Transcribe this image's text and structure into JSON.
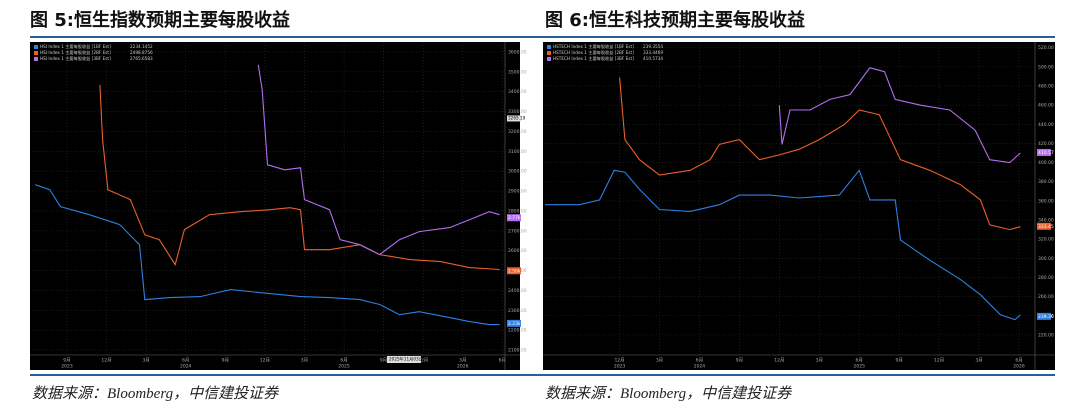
{
  "chart_data": [
    {
      "type": "line",
      "title": "图 5:恒生指数预期主要每股收益",
      "source": "数据来源：Bloomberg，中信建投证券",
      "xlim": [
        -2.65,
        33.2
      ],
      "ylim": [
        2075,
        3650
      ],
      "xticks": [
        {
          "value": 0,
          "label": "9月"
        },
        {
          "value": 3,
          "label": "12月"
        },
        {
          "value": 6,
          "label": "3月"
        },
        {
          "value": 9,
          "label": "6月"
        },
        {
          "value": 12,
          "label": "9月"
        },
        {
          "value": 15,
          "label": "12月"
        },
        {
          "value": 18,
          "label": "3月"
        },
        {
          "value": 21,
          "label": "6月"
        },
        {
          "value": 24,
          "label": "9月"
        },
        {
          "value": 27,
          "label": "12月"
        },
        {
          "value": 30,
          "label": "3月"
        },
        {
          "value": 33,
          "label": "6月"
        }
      ],
      "years": [
        {
          "value": 0,
          "label": "2023"
        },
        {
          "value": 9,
          "label": "2024"
        },
        {
          "value": 21,
          "label": "2025"
        },
        {
          "value": 30,
          "label": "2026"
        }
      ],
      "yticks": [
        {
          "value": 2100,
          "label": "2100.00"
        },
        {
          "value": 2200,
          "label": "2200.00"
        },
        {
          "value": 2300,
          "label": "2300.00"
        },
        {
          "value": 2400,
          "label": "2400.00"
        },
        {
          "value": 2500,
          "label": "2500.00"
        },
        {
          "value": 2600,
          "label": "2600.00"
        },
        {
          "value": 2700,
          "label": "2700.00"
        },
        {
          "value": 2800,
          "label": "2800.00"
        },
        {
          "value": 2900,
          "label": "2900.00"
        },
        {
          "value": 3000,
          "label": "3000.00"
        },
        {
          "value": 3100,
          "label": "3100.00"
        },
        {
          "value": 3200,
          "label": "3200.00"
        },
        {
          "value": 3300,
          "label": "3300.00"
        },
        {
          "value": 3400,
          "label": "3400.00"
        },
        {
          "value": 3500,
          "label": "3500.00"
        },
        {
          "value": 3600,
          "label": "3600.00"
        }
      ],
      "y_marker": {
        "value": 3265.19,
        "label": "3265.19"
      },
      "date_tag": "2025年11月03日",
      "series": [
        {
          "name": "HSI Index 1 主要每股收益 [1BF Est]",
          "color": "#2f80e0",
          "current": 2234.1452,
          "current_label": "2.23k",
          "x": [
            -2.4,
            -1.3,
            -0.5,
            1.7,
            4.0,
            5.5,
            5.9,
            7.8,
            10.1,
            12.4,
            14.6,
            17.7,
            19.9,
            22.2,
            23.7,
            25.2,
            26.7,
            29.0,
            30.5,
            32.0,
            32.8
          ],
          "values": [
            2932,
            2907,
            2821,
            2781,
            2731,
            2630,
            2354,
            2364,
            2369,
            2404,
            2389,
            2369,
            2364,
            2354,
            2329,
            2278,
            2293,
            2263,
            2243,
            2228,
            2228
          ]
        },
        {
          "name": "HSI Index 1 主要每股收益 [2BF Est]",
          "color": "#e8602a",
          "current": 2498.8756,
          "current_label": "2.50k",
          "x": [
            2.5,
            2.7,
            3.1,
            4.8,
            5.9,
            7.0,
            8.2,
            8.9,
            10.8,
            13.1,
            15.4,
            16.9,
            17.7,
            18.0,
            19.9,
            22.2,
            23.7,
            26.0,
            28.3,
            30.5,
            32.8
          ],
          "values": [
            3434,
            3158,
            2907,
            2857,
            2680,
            2655,
            2530,
            2706,
            2781,
            2796,
            2806,
            2816,
            2806,
            2605,
            2605,
            2630,
            2580,
            2555,
            2545,
            2515,
            2505
          ]
        },
        {
          "name": "HSI Index 1 主要每股收益 [3BF Est]",
          "color": "#b46ef0",
          "current": 2765.6583,
          "current_label": "2.77k",
          "x": [
            14.5,
            14.8,
            15.2,
            16.5,
            17.7,
            18.0,
            19.9,
            20.7,
            22.2,
            23.7,
            25.2,
            26.7,
            29.0,
            30.5,
            32.0,
            32.8
          ],
          "values": [
            3535,
            3409,
            3032,
            3007,
            3017,
            2857,
            2806,
            2655,
            2630,
            2580,
            2655,
            2696,
            2716,
            2756,
            2796,
            2781
          ]
        }
      ]
    },
    {
      "type": "line",
      "title": "图 6:恒生科技预期主要每股收益",
      "source": "数据来源：Bloomberg，中信建投证券",
      "xlim": [
        -5.6,
        31.2
      ],
      "ylim": [
        199,
        526
      ],
      "xticks": [
        {
          "value": 0,
          "label": "12月"
        },
        {
          "value": 3,
          "label": "3月"
        },
        {
          "value": 6,
          "label": "6月"
        },
        {
          "value": 9,
          "label": "9月"
        },
        {
          "value": 12,
          "label": "12月"
        },
        {
          "value": 15,
          "label": "3月"
        },
        {
          "value": 18,
          "label": "6月"
        },
        {
          "value": 21,
          "label": "9月"
        },
        {
          "value": 24,
          "label": "12月"
        },
        {
          "value": 27,
          "label": "3月"
        },
        {
          "value": 30,
          "label": "6月"
        }
      ],
      "years": [
        {
          "value": 0,
          "label": "2023"
        },
        {
          "value": 6,
          "label": "2024"
        },
        {
          "value": 18,
          "label": "2025"
        },
        {
          "value": 30,
          "label": "2026"
        }
      ],
      "yticks": [
        {
          "value": 220,
          "label": "220.00"
        },
        {
          "value": 240,
          "label": "240.00"
        },
        {
          "value": 260,
          "label": "260.00"
        },
        {
          "value": 280,
          "label": "280.00"
        },
        {
          "value": 300,
          "label": "300.00"
        },
        {
          "value": 320,
          "label": "320.00"
        },
        {
          "value": 340,
          "label": "340.00"
        },
        {
          "value": 360,
          "label": "360.00"
        },
        {
          "value": 380,
          "label": "380.00"
        },
        {
          "value": 400,
          "label": "400.00"
        },
        {
          "value": 420,
          "label": "420.00"
        },
        {
          "value": 440,
          "label": "440.00"
        },
        {
          "value": 460,
          "label": "460.00"
        },
        {
          "value": 480,
          "label": "480.00"
        },
        {
          "value": 500,
          "label": "500.00"
        },
        {
          "value": 520,
          "label": "520.00"
        }
      ],
      "series": [
        {
          "name": "HSTECH Index 1 主要每股收益 [1BF Est]",
          "color": "#2f80e0",
          "current": 239.3554,
          "current_label": "239.36",
          "x": [
            -5.6,
            -3.0,
            -1.5,
            -0.4,
            0.4,
            1.5,
            3.0,
            5.3,
            7.5,
            9.0,
            11.3,
            13.5,
            16.5,
            18.0,
            18.8,
            20.7,
            21.1,
            23.3,
            25.6,
            27.1,
            28.6,
            29.7,
            30.1
          ],
          "values": [
            356,
            356,
            361,
            392,
            390,
            372,
            351,
            349,
            356,
            366,
            366,
            363,
            366,
            392,
            361,
            361,
            319,
            298,
            278,
            262,
            241,
            236,
            241
          ]
        },
        {
          "name": "HSTECH Index 1 主要每股收益 [2BF Est]",
          "color": "#e8602a",
          "current": 333.4469,
          "current_label": "333.45",
          "x": [
            0,
            0.4,
            1.5,
            3.0,
            5.3,
            6.8,
            7.5,
            9.0,
            10.5,
            12.0,
            13.5,
            15.0,
            16.9,
            18.0,
            19.5,
            21.1,
            23.3,
            25.6,
            27.1,
            27.8,
            29.3,
            30.1
          ],
          "values": [
            489,
            424,
            403,
            387,
            392,
            403,
            419,
            424,
            403,
            408,
            414,
            424,
            440,
            455,
            450,
            403,
            392,
            377,
            361,
            335,
            330,
            333
          ]
        },
        {
          "name": "HSTECH Index 1 主要每股收益 [3BF Est]",
          "color": "#b46ef0",
          "current": 410.5734,
          "current_label": "410.57",
          "x": [
            12.0,
            12.2,
            12.8,
            14.3,
            15.8,
            17.3,
            18.8,
            19.9,
            20.7,
            22.6,
            24.8,
            26.7,
            27.8,
            29.3,
            30.1
          ],
          "values": [
            460,
            419,
            455,
            455,
            466,
            471,
            499,
            495,
            466,
            460,
            455,
            434,
            403,
            400,
            410
          ]
        }
      ]
    }
  ]
}
